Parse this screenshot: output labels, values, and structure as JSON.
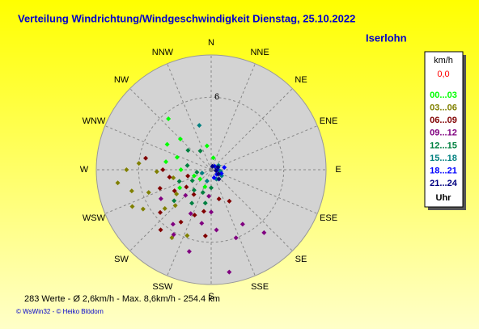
{
  "chart_data": {
    "type": "polar-scatter",
    "title": "Verteilung Windrichtung/Windgeschwindigkeit  Dienstag, 25.10.2022",
    "location": "Iserlohn",
    "directions": [
      "N",
      "NNE",
      "NE",
      "ENE",
      "E",
      "ESE",
      "SE",
      "SSE",
      "S",
      "SSW",
      "SW",
      "WSW",
      "W",
      "WNW",
      "NW",
      "NNW"
    ],
    "rlim": [
      0,
      9.5
    ],
    "rticks": [
      0,
      6
    ],
    "legend_title": "km/h",
    "calm": {
      "value": 0,
      "label": "0,0"
    },
    "legend_footer": "Uhr",
    "series": [
      {
        "name": "00...03",
        "color": "#00ff00",
        "dir": [
          300,
          320,
          290,
          350,
          10,
          200,
          230,
          250,
          270,
          315,
          280,
          240
        ],
        "speed": [
          4.2,
          5.5,
          3.0,
          2.0,
          1.0,
          1.5,
          1.2,
          1.5,
          2.5,
          3.6,
          3.8,
          3.0
        ]
      },
      {
        "name": "03...06",
        "color": "#808000",
        "dir": [
          262,
          255,
          250,
          245,
          268,
          275,
          240,
          230,
          235,
          210,
          200,
          258,
          270,
          225
        ],
        "speed": [
          7.8,
          6.8,
          5.5,
          7.2,
          4.5,
          6.0,
          6.5,
          5.0,
          3.5,
          6.5,
          5.8,
          3.2,
          7.0,
          4.2
        ]
      },
      {
        "name": "06...09",
        "color": "#800000",
        "dir": [
          280,
          270,
          260,
          250,
          240,
          230,
          220,
          210,
          200,
          190,
          185,
          215,
          235,
          255,
          150,
          165
        ],
        "speed": [
          5.5,
          4.0,
          3.5,
          4.5,
          3.5,
          5.5,
          6.5,
          5.0,
          4.0,
          3.5,
          5.5,
          2.5,
          2.5,
          2.0,
          3.0,
          2.5
        ]
      },
      {
        "name": "09...12",
        "color": "#800080",
        "dir": [
          170,
          160,
          175,
          190,
          205,
          215,
          195,
          180,
          225,
          240,
          210,
          150,
          140,
          185
        ],
        "speed": [
          8.6,
          6.0,
          5.0,
          4.5,
          4.0,
          5.5,
          7.0,
          3.5,
          3.0,
          4.8,
          6.2,
          5.2,
          6.8,
          2.2
        ]
      },
      {
        "name": "12...15",
        "color": "#008040",
        "dir": [
          180,
          200,
          220,
          240,
          260,
          280,
          310,
          330,
          210,
          190,
          230,
          250
        ],
        "speed": [
          1.5,
          2.0,
          2.2,
          1.8,
          1.2,
          2.0,
          2.5,
          1.8,
          3.2,
          2.8,
          4.0,
          2.8
        ]
      },
      {
        "name": "15...18",
        "color": "#008080",
        "dir": [
          345,
          100,
          120,
          150,
          90,
          60,
          200,
          250
        ],
        "speed": [
          3.8,
          0.8,
          1.0,
          0.9,
          0.6,
          0.7,
          1.0,
          0.8
        ]
      },
      {
        "name": "18...21",
        "color": "#0000ff",
        "dir": [
          90,
          110,
          130,
          80,
          160,
          45
        ],
        "speed": [
          0.5,
          0.9,
          0.6,
          1.1,
          0.7,
          0.4
        ]
      },
      {
        "name": "21...24",
        "color": "#000080",
        "dir": [
          70,
          120,
          140,
          100,
          20
        ],
        "speed": [
          0.6,
          0.7,
          1.0,
          0.4,
          0.3
        ]
      }
    ],
    "footer": "283 Werte   -   Ø 2,6km/h   -   Max. 8,6km/h   -   254.4 km",
    "credits": "© WsWin32  -  © Heiko Blödorn"
  }
}
